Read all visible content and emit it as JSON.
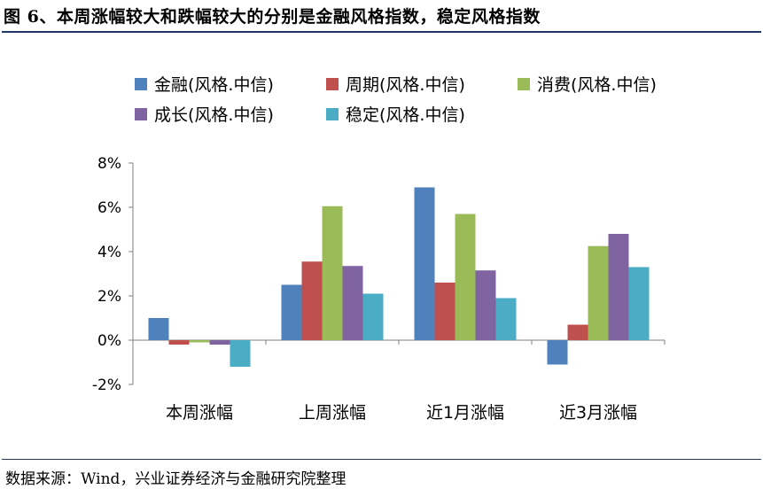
{
  "figure": {
    "title": "图 6、本周涨幅较大和跌幅较大的分别是金融风格指数，稳定风格指数",
    "source": "数据来源：Wind，兴业证券经济与金融研究院整理"
  },
  "chart_data": {
    "type": "bar",
    "title": "",
    "xlabel": "",
    "ylabel": "",
    "categories": [
      "本周涨幅",
      "上周涨幅",
      "近1月涨幅",
      "近3月涨幅"
    ],
    "series": [
      {
        "name": "金融(风格.中信)",
        "color": "#4f81bd",
        "values": [
          1.0,
          2.5,
          6.9,
          -1.1
        ]
      },
      {
        "name": "周期(风格.中信)",
        "color": "#c0504d",
        "values": [
          -0.2,
          3.55,
          2.6,
          0.7
        ]
      },
      {
        "name": "消费(风格.中信)",
        "color": "#9bbb59",
        "values": [
          -0.1,
          6.05,
          5.7,
          4.25
        ]
      },
      {
        "name": "成长(风格.中信)",
        "color": "#8064a2",
        "values": [
          -0.2,
          3.35,
          3.15,
          4.8
        ]
      },
      {
        "name": "稳定(风格.中信)",
        "color": "#4bacc6",
        "values": [
          -1.2,
          2.1,
          1.9,
          3.3
        ]
      }
    ],
    "ylim": [
      -2,
      8
    ],
    "yticks": [
      "-2%",
      "0%",
      "2%",
      "4%",
      "6%",
      "8%"
    ],
    "ytick_values": [
      -2,
      0,
      2,
      4,
      6,
      8
    ],
    "grid": false,
    "legend_position": "top"
  }
}
